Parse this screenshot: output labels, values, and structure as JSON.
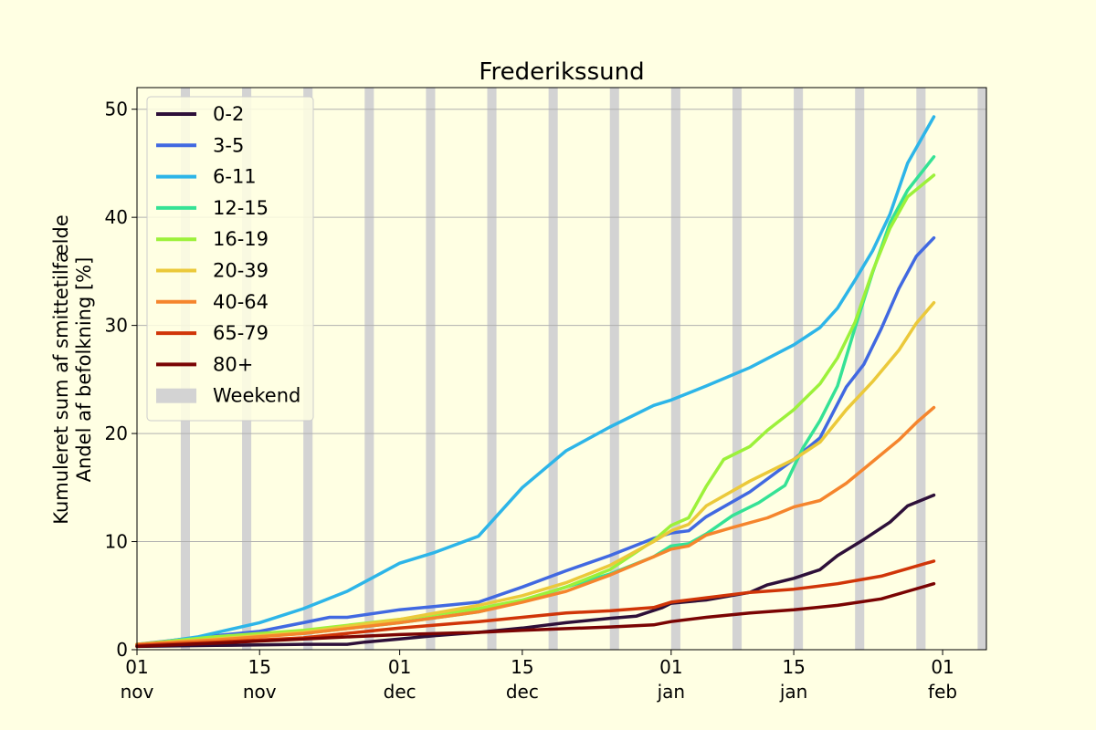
{
  "chart_data": {
    "type": "line",
    "title": "Frederikssund",
    "ylabel_lines": [
      "Kumuleret sum af smittetilfælde",
      "Andel af befolkning [%]"
    ],
    "xlabel": "",
    "ylim": [
      0,
      52
    ],
    "xlim": [
      "2021-11-01",
      "2022-02-06"
    ],
    "grid": "horizontal",
    "legend_placement": "upper-left",
    "yticks": [
      0,
      10,
      20,
      30,
      40,
      50
    ],
    "xticks": [
      {
        "date": "2021-11-01",
        "day": "01",
        "month": "nov"
      },
      {
        "date": "2021-11-15",
        "day": "15",
        "month": "nov"
      },
      {
        "date": "2021-12-01",
        "day": "01",
        "month": "dec"
      },
      {
        "date": "2021-12-15",
        "day": "15",
        "month": "dec"
      },
      {
        "date": "2022-01-01",
        "day": "01",
        "month": "jan"
      },
      {
        "date": "2022-01-15",
        "day": "15",
        "month": "jan"
      },
      {
        "date": "2022-02-01",
        "day": "01",
        "month": "feb"
      }
    ],
    "weekend_label": "Weekend",
    "weekend_color": "#d3d3d3",
    "weekends": [
      [
        "2021-11-06",
        "2021-11-07"
      ],
      [
        "2021-11-13",
        "2021-11-14"
      ],
      [
        "2021-11-20",
        "2021-11-21"
      ],
      [
        "2021-11-27",
        "2021-11-28"
      ],
      [
        "2021-12-04",
        "2021-12-05"
      ],
      [
        "2021-12-11",
        "2021-12-12"
      ],
      [
        "2021-12-18",
        "2021-12-19"
      ],
      [
        "2021-12-25",
        "2021-12-26"
      ],
      [
        "2022-01-01",
        "2022-01-02"
      ],
      [
        "2022-01-08",
        "2022-01-09"
      ],
      [
        "2022-01-15",
        "2022-01-16"
      ],
      [
        "2022-01-22",
        "2022-01-23"
      ],
      [
        "2022-01-29",
        "2022-01-30"
      ],
      [
        "2022-02-05",
        "2022-02-06"
      ]
    ],
    "series": [
      {
        "name": "0-2",
        "color": "#2e1039",
        "points": [
          [
            "2021-11-01",
            0.3
          ],
          [
            "2021-11-10",
            0.4
          ],
          [
            "2021-11-20",
            0.5
          ],
          [
            "2021-11-25",
            0.5
          ],
          [
            "2021-11-27",
            0.7
          ],
          [
            "2021-12-01",
            1.0
          ],
          [
            "2021-12-05",
            1.3
          ],
          [
            "2021-12-10",
            1.6
          ],
          [
            "2021-12-15",
            2.0
          ],
          [
            "2021-12-20",
            2.5
          ],
          [
            "2021-12-25",
            2.9
          ],
          [
            "2021-12-28",
            3.1
          ],
          [
            "2021-12-31",
            3.9
          ],
          [
            "2022-01-01",
            4.3
          ],
          [
            "2022-01-05",
            4.6
          ],
          [
            "2022-01-10",
            5.3
          ],
          [
            "2022-01-12",
            6.0
          ],
          [
            "2022-01-15",
            6.6
          ],
          [
            "2022-01-18",
            7.4
          ],
          [
            "2022-01-20",
            8.7
          ],
          [
            "2022-01-23",
            10.2
          ],
          [
            "2022-01-26",
            11.8
          ],
          [
            "2022-01-28",
            13.3
          ],
          [
            "2022-01-31",
            14.3
          ]
        ]
      },
      {
        "name": "3-5",
        "color": "#4169e1",
        "points": [
          [
            "2021-11-01",
            0.5
          ],
          [
            "2021-11-10",
            1.3
          ],
          [
            "2021-11-15",
            1.7
          ],
          [
            "2021-11-20",
            2.5
          ],
          [
            "2021-11-23",
            3.0
          ],
          [
            "2021-11-25",
            3.0
          ],
          [
            "2021-12-01",
            3.7
          ],
          [
            "2021-12-05",
            4.0
          ],
          [
            "2021-12-10",
            4.4
          ],
          [
            "2021-12-15",
            5.8
          ],
          [
            "2021-12-20",
            7.3
          ],
          [
            "2021-12-25",
            8.7
          ],
          [
            "2021-12-30",
            10.3
          ],
          [
            "2022-01-01",
            10.8
          ],
          [
            "2022-01-03",
            11.0
          ],
          [
            "2022-01-05",
            12.3
          ],
          [
            "2022-01-10",
            14.6
          ],
          [
            "2022-01-15",
            17.6
          ],
          [
            "2022-01-18",
            19.6
          ],
          [
            "2022-01-21",
            24.3
          ],
          [
            "2022-01-23",
            26.4
          ],
          [
            "2022-01-25",
            29.7
          ],
          [
            "2022-01-27",
            33.4
          ],
          [
            "2022-01-29",
            36.4
          ],
          [
            "2022-01-31",
            38.1
          ]
        ]
      },
      {
        "name": "6-11",
        "color": "#2db5e8",
        "points": [
          [
            "2021-11-01",
            0.4
          ],
          [
            "2021-11-08",
            1.2
          ],
          [
            "2021-11-15",
            2.5
          ],
          [
            "2021-11-20",
            3.8
          ],
          [
            "2021-11-25",
            5.4
          ],
          [
            "2021-12-01",
            8.0
          ],
          [
            "2021-12-05",
            9.0
          ],
          [
            "2021-12-10",
            10.5
          ],
          [
            "2021-12-15",
            15.0
          ],
          [
            "2021-12-20",
            18.4
          ],
          [
            "2021-12-25",
            20.6
          ],
          [
            "2021-12-30",
            22.6
          ],
          [
            "2022-01-01",
            23.1
          ],
          [
            "2022-01-05",
            24.4
          ],
          [
            "2022-01-10",
            26.1
          ],
          [
            "2022-01-15",
            28.2
          ],
          [
            "2022-01-18",
            29.8
          ],
          [
            "2022-01-20",
            31.6
          ],
          [
            "2022-01-22",
            34.2
          ],
          [
            "2022-01-24",
            36.9
          ],
          [
            "2022-01-26",
            40.3
          ],
          [
            "2022-01-28",
            45.0
          ],
          [
            "2022-01-31",
            49.3
          ]
        ]
      },
      {
        "name": "12-15",
        "color": "#35e295",
        "points": [
          [
            "2021-11-01",
            0.5
          ],
          [
            "2021-11-10",
            1.0
          ],
          [
            "2021-11-20",
            1.5
          ],
          [
            "2021-12-01",
            2.5
          ],
          [
            "2021-12-10",
            3.5
          ],
          [
            "2021-12-15",
            4.5
          ],
          [
            "2021-12-20",
            5.8
          ],
          [
            "2021-12-25",
            7.0
          ],
          [
            "2021-12-30",
            8.6
          ],
          [
            "2022-01-01",
            9.6
          ],
          [
            "2022-01-03",
            9.8
          ],
          [
            "2022-01-05",
            10.7
          ],
          [
            "2022-01-08",
            12.4
          ],
          [
            "2022-01-11",
            13.6
          ],
          [
            "2022-01-14",
            15.2
          ],
          [
            "2022-01-16",
            18.6
          ],
          [
            "2022-01-18",
            21.2
          ],
          [
            "2022-01-20",
            24.4
          ],
          [
            "2022-01-22",
            29.8
          ],
          [
            "2022-01-24",
            34.9
          ],
          [
            "2022-01-26",
            39.5
          ],
          [
            "2022-01-28",
            42.5
          ],
          [
            "2022-01-31",
            45.6
          ]
        ]
      },
      {
        "name": "16-19",
        "color": "#9cf13a",
        "points": [
          [
            "2021-11-01",
            0.5
          ],
          [
            "2021-11-10",
            1.2
          ],
          [
            "2021-11-20",
            1.8
          ],
          [
            "2021-12-01",
            2.8
          ],
          [
            "2021-12-10",
            3.8
          ],
          [
            "2021-12-15",
            4.6
          ],
          [
            "2021-12-20",
            5.8
          ],
          [
            "2021-12-25",
            7.4
          ],
          [
            "2021-12-30",
            10.1
          ],
          [
            "2022-01-01",
            11.5
          ],
          [
            "2022-01-03",
            12.2
          ],
          [
            "2022-01-05",
            15.1
          ],
          [
            "2022-01-07",
            17.6
          ],
          [
            "2022-01-10",
            18.8
          ],
          [
            "2022-01-12",
            20.3
          ],
          [
            "2022-01-15",
            22.2
          ],
          [
            "2022-01-18",
            24.6
          ],
          [
            "2022-01-20",
            27.0
          ],
          [
            "2022-01-22",
            30.3
          ],
          [
            "2022-01-24",
            35.0
          ],
          [
            "2022-01-26",
            39.0
          ],
          [
            "2022-01-28",
            41.9
          ],
          [
            "2022-01-31",
            43.9
          ]
        ]
      },
      {
        "name": "20-39",
        "color": "#ebc93a",
        "points": [
          [
            "2021-11-01",
            0.5
          ],
          [
            "2021-11-10",
            1.0
          ],
          [
            "2021-11-20",
            1.6
          ],
          [
            "2021-12-01",
            2.8
          ],
          [
            "2021-12-10",
            4.1
          ],
          [
            "2021-12-15",
            5.0
          ],
          [
            "2021-12-20",
            6.2
          ],
          [
            "2021-12-25",
            7.8
          ],
          [
            "2021-12-30",
            10.0
          ],
          [
            "2022-01-01",
            11.0
          ],
          [
            "2022-01-03",
            11.6
          ],
          [
            "2022-01-05",
            13.3
          ],
          [
            "2022-01-10",
            15.6
          ],
          [
            "2022-01-13",
            16.8
          ],
          [
            "2022-01-15",
            17.6
          ],
          [
            "2022-01-18",
            19.2
          ],
          [
            "2022-01-21",
            22.2
          ],
          [
            "2022-01-24",
            24.8
          ],
          [
            "2022-01-27",
            27.7
          ],
          [
            "2022-01-29",
            30.2
          ],
          [
            "2022-01-31",
            32.1
          ]
        ]
      },
      {
        "name": "40-64",
        "color": "#f5852d",
        "points": [
          [
            "2021-11-01",
            0.5
          ],
          [
            "2021-11-10",
            0.9
          ],
          [
            "2021-11-20",
            1.5
          ],
          [
            "2021-12-01",
            2.5
          ],
          [
            "2021-12-10",
            3.5
          ],
          [
            "2021-12-15",
            4.4
          ],
          [
            "2021-12-20",
            5.4
          ],
          [
            "2021-12-25",
            6.9
          ],
          [
            "2021-12-30",
            8.6
          ],
          [
            "2022-01-01",
            9.3
          ],
          [
            "2022-01-03",
            9.6
          ],
          [
            "2022-01-05",
            10.6
          ],
          [
            "2022-01-08",
            11.3
          ],
          [
            "2022-01-12",
            12.2
          ],
          [
            "2022-01-15",
            13.2
          ],
          [
            "2022-01-18",
            13.8
          ],
          [
            "2022-01-21",
            15.4
          ],
          [
            "2022-01-24",
            17.4
          ],
          [
            "2022-01-27",
            19.4
          ],
          [
            "2022-01-29",
            21.0
          ],
          [
            "2022-01-31",
            22.4
          ]
        ]
      },
      {
        "name": "65-79",
        "color": "#d03508",
        "points": [
          [
            "2021-11-01",
            0.4
          ],
          [
            "2021-11-10",
            0.7
          ],
          [
            "2021-11-20",
            1.1
          ],
          [
            "2021-12-01",
            2.0
          ],
          [
            "2021-12-10",
            2.6
          ],
          [
            "2021-12-15",
            3.0
          ],
          [
            "2021-12-20",
            3.4
          ],
          [
            "2021-12-25",
            3.6
          ],
          [
            "2021-12-30",
            3.9
          ],
          [
            "2022-01-01",
            4.4
          ],
          [
            "2022-01-05",
            4.8
          ],
          [
            "2022-01-10",
            5.3
          ],
          [
            "2022-01-15",
            5.6
          ],
          [
            "2022-01-20",
            6.1
          ],
          [
            "2022-01-25",
            6.8
          ],
          [
            "2022-01-28",
            7.5
          ],
          [
            "2022-01-31",
            8.2
          ]
        ]
      },
      {
        "name": "80+",
        "color": "#7a0403",
        "points": [
          [
            "2021-11-01",
            0.3
          ],
          [
            "2021-11-10",
            0.6
          ],
          [
            "2021-11-20",
            1.0
          ],
          [
            "2021-12-01",
            1.4
          ],
          [
            "2021-12-10",
            1.6
          ],
          [
            "2021-12-15",
            1.8
          ],
          [
            "2021-12-25",
            2.1
          ],
          [
            "2021-12-30",
            2.3
          ],
          [
            "2022-01-01",
            2.6
          ],
          [
            "2022-01-05",
            3.0
          ],
          [
            "2022-01-10",
            3.4
          ],
          [
            "2022-01-15",
            3.7
          ],
          [
            "2022-01-20",
            4.1
          ],
          [
            "2022-01-25",
            4.7
          ],
          [
            "2022-01-28",
            5.4
          ],
          [
            "2022-01-31",
            6.1
          ]
        ]
      }
    ]
  }
}
